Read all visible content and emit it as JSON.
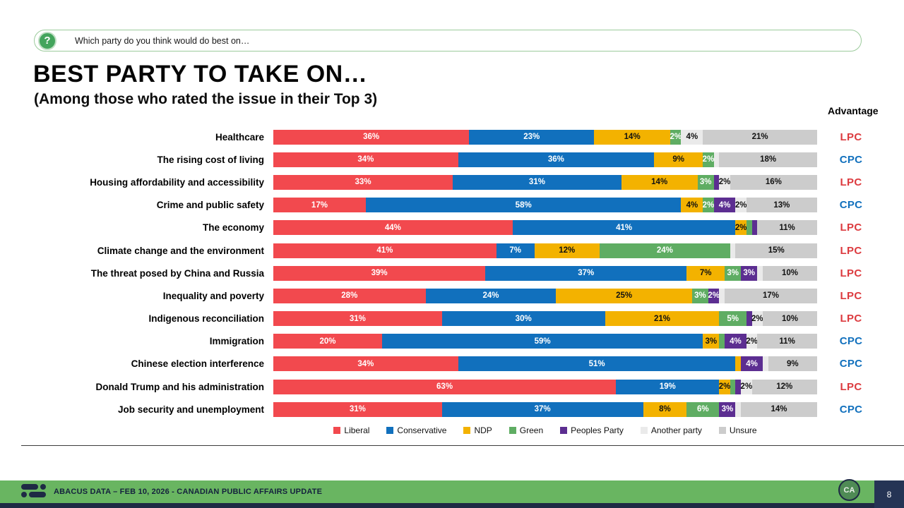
{
  "question": {
    "text": "Which party do you think would do best on…"
  },
  "advantage_header": "Advantage",
  "advantage_colors": {
    "LPC": "#DC3A3E",
    "CPC": "#1170BD"
  },
  "chart_data": {
    "type": "bar",
    "stacked": true,
    "orientation": "horizontal",
    "unit": "%",
    "title": "BEST PARTY TO TAKE ON…",
    "subtitle": "(Among those who rated the issue in their Top 3)",
    "legend_position": "bottom",
    "xlim": [
      0,
      100
    ],
    "categories": [
      "Healthcare",
      "The rising cost of living",
      "Housing affordability and accessibility",
      "Crime and public safety",
      "The economy",
      "Climate change and the environment",
      "The threat posed by China and Russia",
      "Inequality and poverty",
      "Indigenous reconciliation",
      "Immigration",
      "Chinese election interference",
      "Donald Trump and his administration",
      "Job security and unemployment"
    ],
    "series": [
      {
        "name": "Liberal",
        "color": "#F2494E",
        "values": [
          36,
          34,
          33,
          17,
          44,
          41,
          39,
          28,
          31,
          20,
          34,
          63,
          31
        ]
      },
      {
        "name": "Conservative",
        "color": "#1170BD",
        "values": [
          23,
          36,
          31,
          58,
          41,
          7,
          37,
          24,
          30,
          59,
          51,
          19,
          37
        ]
      },
      {
        "name": "NDP",
        "color": "#F3B200",
        "values": [
          14,
          9,
          14,
          4,
          2,
          12,
          7,
          25,
          21,
          3,
          1,
          2,
          8
        ]
      },
      {
        "name": "Green",
        "color": "#5FAD63",
        "values": [
          2,
          2,
          3,
          2,
          1,
          24,
          3,
          3,
          5,
          1,
          0,
          1,
          6
        ]
      },
      {
        "name": "Peoples Party",
        "color": "#5C2E91",
        "values": [
          0,
          0,
          1,
          4,
          1,
          0,
          3,
          2,
          1,
          4,
          4,
          1,
          3
        ]
      },
      {
        "name": "Another party",
        "color": "#EAEAEA",
        "values": [
          4,
          1,
          2,
          2,
          0,
          1,
          1,
          1,
          2,
          2,
          1,
          2,
          1
        ]
      },
      {
        "name": "Unsure",
        "color": "#CCCCCC",
        "values": [
          21,
          18,
          16,
          13,
          11,
          15,
          10,
          17,
          10,
          11,
          9,
          12,
          14
        ]
      }
    ],
    "advantage": [
      "LPC",
      "CPC",
      "LPC",
      "CPC",
      "LPC",
      "LPC",
      "LPC",
      "LPC",
      "LPC",
      "CPC",
      "CPC",
      "LPC",
      "CPC"
    ]
  },
  "footer": {
    "text": "ABACUS DATA – FEB 10, 2026 - CANADIAN PUBLIC AFFAIRS UPDATE",
    "page": "8",
    "badge": "CA"
  }
}
